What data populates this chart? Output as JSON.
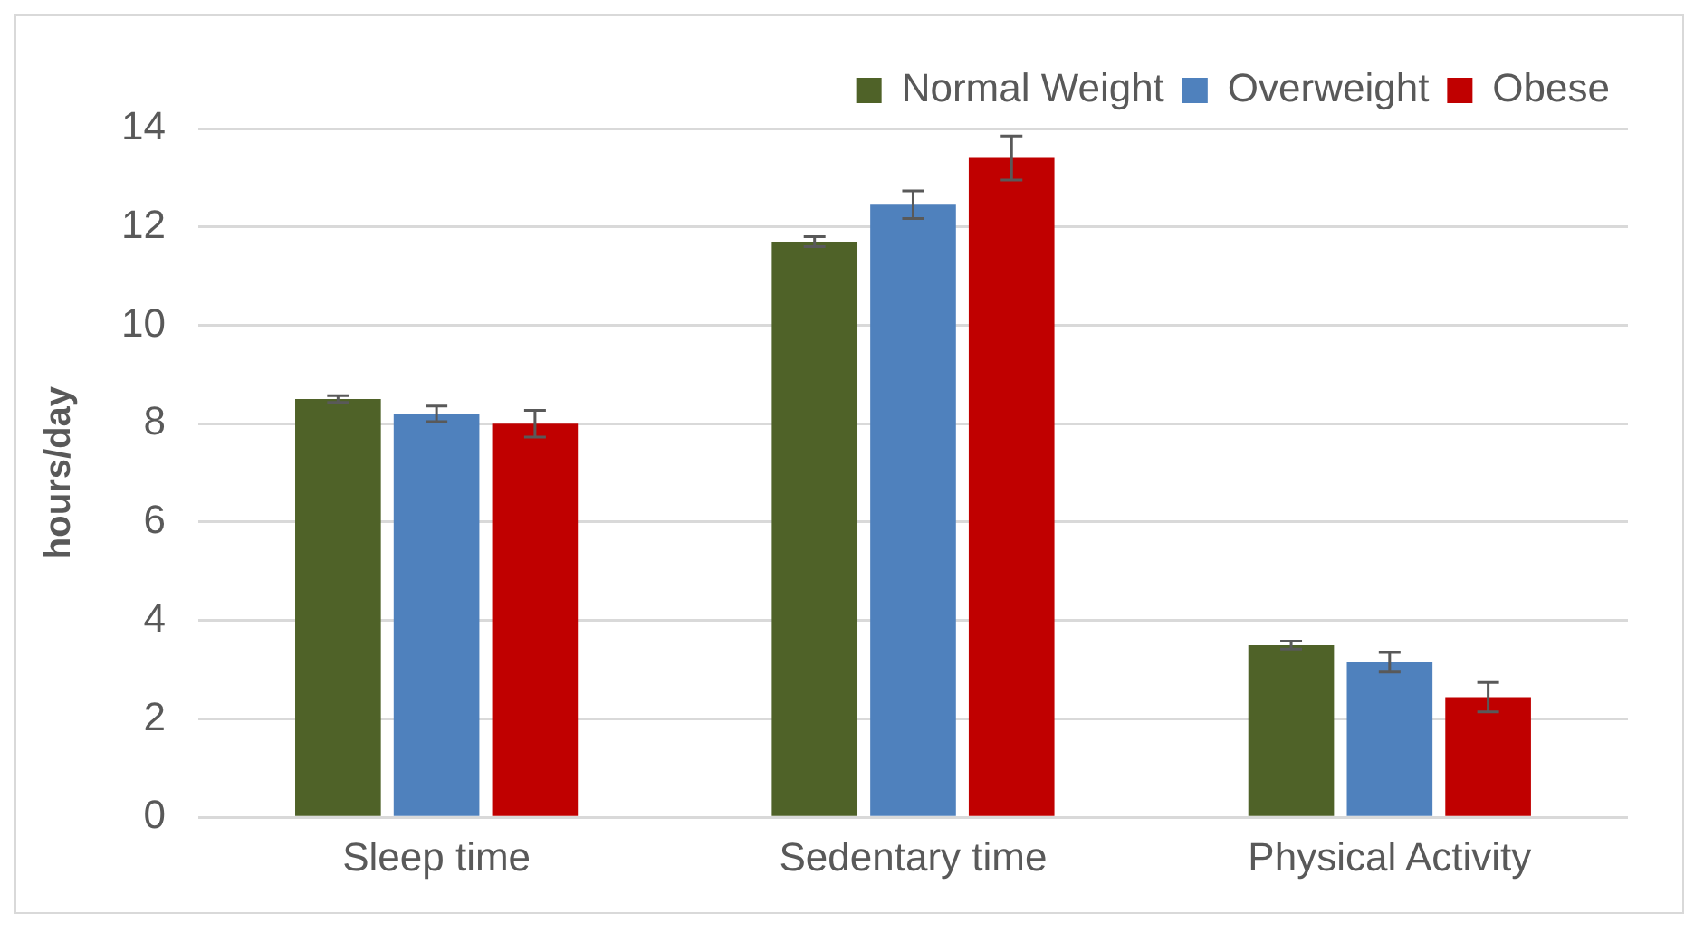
{
  "chart_data": {
    "type": "bar",
    "ylabel": "hours/day",
    "categories": [
      "Sleep time",
      "Sedentary time",
      "Physical Activity"
    ],
    "series": [
      {
        "name": "Normal Weight",
        "color": "#4f6228",
        "values": [
          8.5,
          11.7,
          3.5
        ],
        "errors": [
          0.07,
          0.1,
          0.08
        ]
      },
      {
        "name": "Overweight",
        "color": "#4f81bd",
        "values": [
          8.2,
          12.45,
          3.15
        ],
        "errors": [
          0.16,
          0.28,
          0.2
        ]
      },
      {
        "name": "Obese",
        "color": "#c00000",
        "values": [
          8.0,
          13.4,
          2.44
        ],
        "errors": [
          0.27,
          0.45,
          0.3
        ]
      }
    ],
    "ylim": [
      0,
      14
    ],
    "yticks": [
      0,
      2,
      4,
      6,
      8,
      10,
      12,
      14
    ],
    "grid": "y",
    "legend": "top right"
  }
}
